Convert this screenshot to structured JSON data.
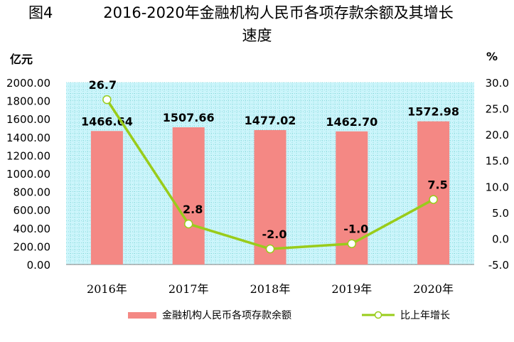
{
  "figure_label": "图4",
  "title_line1": "2016-2020年金融机构人民币各项存款余额及其增长",
  "title_line2": "速度",
  "left_unit": "亿元",
  "right_unit": "%",
  "colors": {
    "bar": "#f48884",
    "line": "#99cc1a",
    "marker_fill": "#ffffff",
    "plot_bg": "#ccf5fb",
    "grid": "#66cccc"
  },
  "chart_data": {
    "type": "bar+line",
    "categories": [
      "2016年",
      "2017年",
      "2018年",
      "2019年",
      "2020年"
    ],
    "series": [
      {
        "name": "金融机构人民币各项存款余额",
        "type": "bar",
        "axis": "left",
        "values": [
          1466.64,
          1507.66,
          1477.02,
          1462.7,
          1572.98
        ],
        "labels": [
          "1466.64",
          "1507.66",
          "1477.02",
          "1462.70",
          "1572.98"
        ]
      },
      {
        "name": "比上年增长",
        "type": "line",
        "axis": "right",
        "values": [
          26.7,
          2.8,
          -2.0,
          -1.0,
          7.5
        ],
        "labels": [
          "26.7",
          "2.8",
          "-2.0",
          "-1.0",
          "7.5"
        ]
      }
    ],
    "y_left": {
      "min": 0,
      "max": 2000,
      "step": 200,
      "ticks": [
        "0.00",
        "200.00",
        "400.00",
        "600.00",
        "800.00",
        "1000.00",
        "1200.00",
        "1400.00",
        "1600.00",
        "1800.00",
        "2000.00"
      ]
    },
    "y_right": {
      "min": -5,
      "max": 30,
      "step": 5,
      "ticks": [
        "-5.0",
        "0.0",
        "5.0",
        "10.0",
        "15.0",
        "20.0",
        "25.0",
        "30.0"
      ]
    },
    "grid": true,
    "legend_position": "bottom"
  }
}
